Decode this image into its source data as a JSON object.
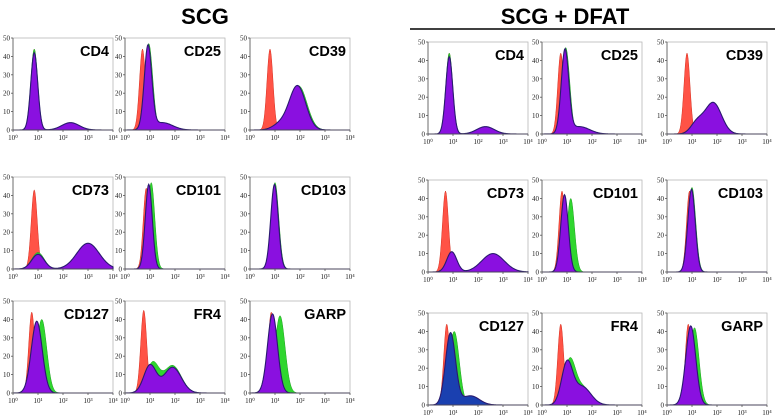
{
  "chart_data": {
    "type": "histogram-grid",
    "groups": [
      {
        "title": "SCG",
        "y_ticks": [
          "0",
          "10",
          "20",
          "30",
          "40",
          "50"
        ],
        "x_ticks": [
          "10⁰",
          "10¹",
          "10²",
          "10³",
          "10⁴"
        ],
        "ylim": [
          0,
          50
        ],
        "xlim_log10": [
          0,
          4
        ],
        "panels": [
          {
            "label": "CD4",
            "ctrl": [
              [
                0.85,
                44,
                0.12
              ]
            ],
            "iso": [
              [
                0.85,
                44,
                0.14
              ],
              [
                2.3,
                4,
                0.35
              ]
            ],
            "stain": [
              [
                0.85,
                42,
                0.14
              ],
              [
                2.3,
                4,
                0.35
              ]
            ]
          },
          {
            "label": "CD25",
            "ctrl": [
              [
                0.7,
                44,
                0.12
              ]
            ],
            "iso": [
              [
                0.95,
                47,
                0.16
              ]
            ],
            "stain": [
              [
                0.92,
                45,
                0.15
              ],
              [
                1.5,
                4,
                0.4
              ]
            ]
          },
          {
            "label": "CD39",
            "ctrl": [
              [
                0.8,
                44,
                0.12
              ]
            ],
            "iso": [
              [
                1.95,
                24,
                0.33
              ]
            ],
            "stain": [
              [
                1.9,
                24,
                0.33
              ],
              [
                1.2,
                3,
                0.3
              ]
            ]
          },
          {
            "label": "CD73",
            "ctrl": [
              [
                0.85,
                43,
                0.12
              ]
            ],
            "iso": [
              [
                1.0,
                9,
                0.25
              ],
              [
                3.0,
                13,
                0.45
              ]
            ],
            "stain": [
              [
                1.0,
                8,
                0.25
              ],
              [
                3.0,
                14,
                0.45
              ]
            ]
          },
          {
            "label": "CD101",
            "ctrl": [
              [
                0.85,
                44,
                0.12
              ]
            ],
            "iso": [
              [
                1.05,
                47,
                0.14
              ]
            ],
            "stain": [
              [
                0.95,
                46,
                0.14
              ]
            ]
          },
          {
            "label": "CD103",
            "ctrl": [
              [
                0.95,
                44,
                0.12
              ]
            ],
            "iso": [
              [
                1.0,
                47,
                0.15
              ]
            ],
            "stain": [
              [
                0.98,
                46,
                0.15
              ]
            ]
          },
          {
            "label": "CD127",
            "ctrl": [
              [
                0.75,
                44,
                0.12
              ]
            ],
            "iso": [
              [
                1.15,
                40,
                0.2
              ]
            ],
            "stain": [
              [
                0.95,
                39,
                0.22
              ]
            ]
          },
          {
            "label": "FR4",
            "ctrl": [
              [
                0.75,
                45,
                0.12
              ]
            ],
            "iso": [
              [
                1.1,
                16,
                0.25
              ],
              [
                1.9,
                15,
                0.35
              ]
            ],
            "stain": [
              [
                1.0,
                15,
                0.25
              ],
              [
                1.9,
                14,
                0.35
              ]
            ]
          },
          {
            "label": "GARP",
            "ctrl": [
              [
                0.85,
                44,
                0.12
              ]
            ],
            "iso": [
              [
                1.2,
                42,
                0.2
              ]
            ],
            "stain": [
              [
                0.9,
                43,
                0.2
              ]
            ]
          }
        ]
      },
      {
        "title": "SCG + DFAT",
        "y_ticks": [
          "0",
          "10",
          "20",
          "30",
          "40",
          "50"
        ],
        "x_ticks": [
          "10⁰",
          "10¹",
          "10²",
          "10³",
          "10⁴"
        ],
        "ylim": [
          0,
          50
        ],
        "xlim_log10": [
          0,
          4
        ],
        "panels": [
          {
            "label": "CD4",
            "ctrl": [
              [
                0.85,
                44,
                0.12
              ]
            ],
            "iso": [
              [
                0.85,
                44,
                0.14
              ],
              [
                2.3,
                4,
                0.35
              ]
            ],
            "stain": [
              [
                0.85,
                42,
                0.14
              ],
              [
                2.3,
                4,
                0.35
              ]
            ]
          },
          {
            "label": "CD25",
            "ctrl": [
              [
                0.75,
                44,
                0.12
              ]
            ],
            "iso": [
              [
                0.95,
                47,
                0.16
              ]
            ],
            "stain": [
              [
                0.92,
                45,
                0.15
              ],
              [
                1.5,
                4,
                0.4
              ]
            ]
          },
          {
            "label": "CD39",
            "ctrl": [
              [
                0.8,
                44,
                0.12
              ]
            ],
            "iso": [
              [
                1.85,
                17,
                0.33
              ],
              [
                1.2,
                6,
                0.25
              ]
            ],
            "stain": [
              [
                1.85,
                17,
                0.33
              ],
              [
                1.2,
                6,
                0.25
              ]
            ]
          },
          {
            "label": "CD73",
            "ctrl": [
              [
                0.7,
                44,
                0.12
              ]
            ],
            "iso": [
              [
                0.95,
                11,
                0.2
              ],
              [
                2.6,
                10,
                0.45
              ]
            ],
            "stain": [
              [
                0.95,
                11,
                0.2
              ],
              [
                2.6,
                10,
                0.45
              ]
            ]
          },
          {
            "label": "CD101",
            "ctrl": [
              [
                0.8,
                44,
                0.12
              ]
            ],
            "iso": [
              [
                1.15,
                40,
                0.15
              ]
            ],
            "stain": [
              [
                0.9,
                42,
                0.15
              ]
            ]
          },
          {
            "label": "CD103",
            "ctrl": [
              [
                0.9,
                44,
                0.12
              ]
            ],
            "iso": [
              [
                1.0,
                46,
                0.15
              ]
            ],
            "stain": [
              [
                0.98,
                45,
                0.15
              ]
            ]
          },
          {
            "label": "CD127",
            "ctrl": [
              [
                0.75,
                44,
                0.12
              ]
            ],
            "iso": [
              [
                1.05,
                40,
                0.2
              ]
            ],
            "stain": [
              [
                0.9,
                39,
                0.2
              ],
              [
                1.7,
                5,
                0.35
              ]
            ],
            "stain_color": "#1a40b0"
          },
          {
            "label": "FR4",
            "ctrl": [
              [
                0.75,
                44,
                0.12
              ]
            ],
            "iso": [
              [
                1.1,
                22,
                0.22
              ],
              [
                1.6,
                10,
                0.35
              ]
            ],
            "stain": [
              [
                1.0,
                22,
                0.22
              ],
              [
                1.6,
                10,
                0.35
              ]
            ]
          },
          {
            "label": "GARP",
            "ctrl": [
              [
                0.85,
                44,
                0.12
              ]
            ],
            "iso": [
              [
                1.1,
                42,
                0.18
              ]
            ],
            "stain": [
              [
                0.95,
                43,
                0.2
              ]
            ]
          }
        ]
      }
    ],
    "colors": {
      "control": "#ff4a3c",
      "isotype": "#2fd62f",
      "stained": "#8a10e0",
      "stained_edge": "#2a1a70"
    }
  }
}
